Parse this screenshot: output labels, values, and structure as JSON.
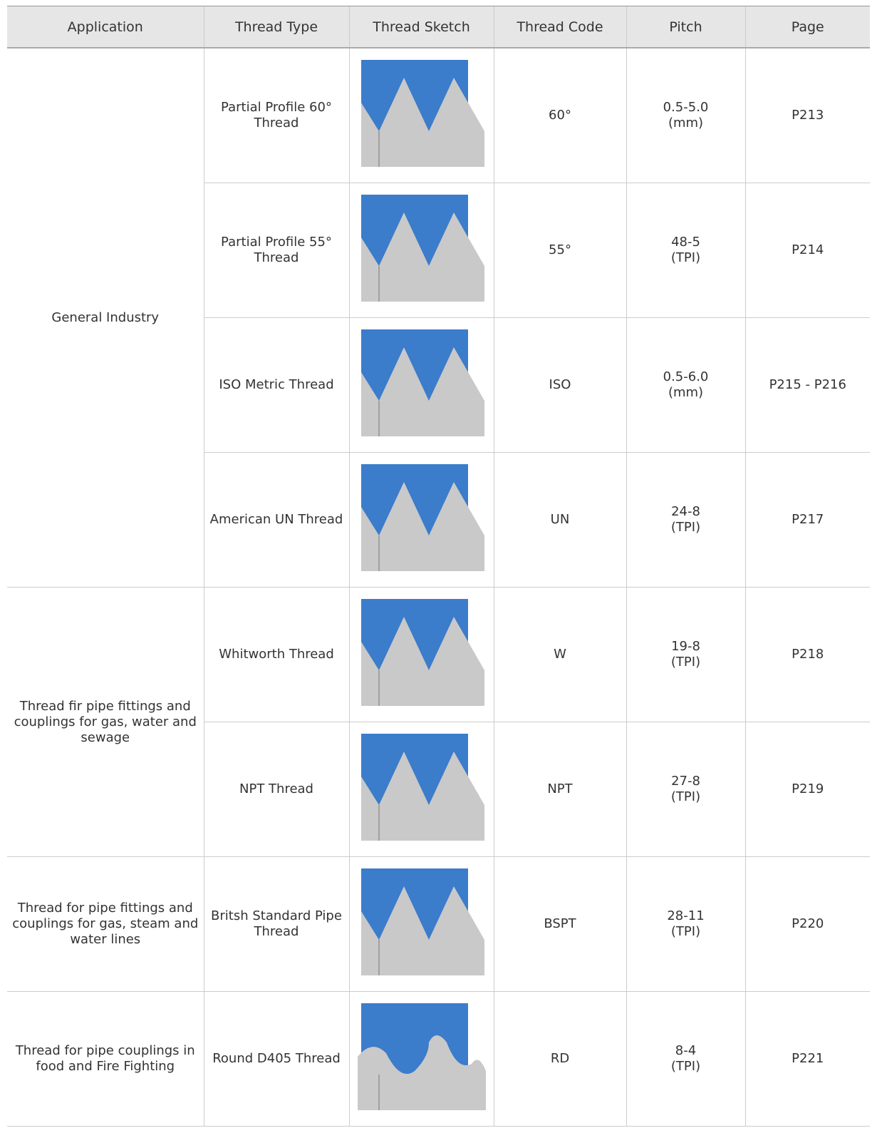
{
  "table": {
    "header": [
      "Application",
      "Thread Type",
      "Thread Sketch",
      "Thread Code",
      "Pitch",
      "Page"
    ],
    "groups": [
      {
        "application": "General Industry",
        "rows": [
          {
            "thread_type": "Partial Profile 60° Thread",
            "thread_code": "60°",
            "pitch": "0.5-5.0",
            "pitch_unit": "(mm)",
            "page": "P213"
          },
          {
            "thread_type": "Partial Profile 55° Thread",
            "thread_code": "55°",
            "pitch": "48-5",
            "pitch_unit": "(TPI)",
            "page": "P214"
          },
          {
            "thread_type": "ISO Metric Thread",
            "thread_code": "ISO",
            "pitch": "0.5-6.0",
            "pitch_unit": "(mm)",
            "page": "P215 - P216"
          },
          {
            "thread_type": "American UN Thread",
            "thread_code": "UN",
            "pitch": "24-8",
            "pitch_unit": "(TPI)",
            "page": "P217"
          }
        ]
      },
      {
        "application": "Thread fir pipe fittings and couplings for gas, water and sewage",
        "rows": [
          {
            "thread_type": "Whitworth Thread",
            "thread_code": "W",
            "pitch": "19-8",
            "pitch_unit": "(TPI)",
            "page": "P218"
          },
          {
            "thread_type": "NPT Thread",
            "thread_code": "NPT",
            "pitch": "27-8",
            "pitch_unit": "(TPI)",
            "page": "P219"
          }
        ]
      },
      {
        "application": "Thread for pipe fittings and couplings for gas, steam and water lines",
        "rows": [
          {
            "thread_type": "Britsh Standard Pipe Thread",
            "thread_code": "BSPT",
            "pitch": "28-11",
            "pitch_unit": "(TPI)",
            "page": "P220"
          }
        ]
      },
      {
        "application": "Thread for pipe couplings in food and Fire Fighting",
        "rows": [
          {
            "thread_type": "Round D405 Thread",
            "thread_code": "RD",
            "pitch": "8-4",
            "pitch_unit": "(TPI)",
            "page": "P221"
          }
        ]
      }
    ]
  }
}
